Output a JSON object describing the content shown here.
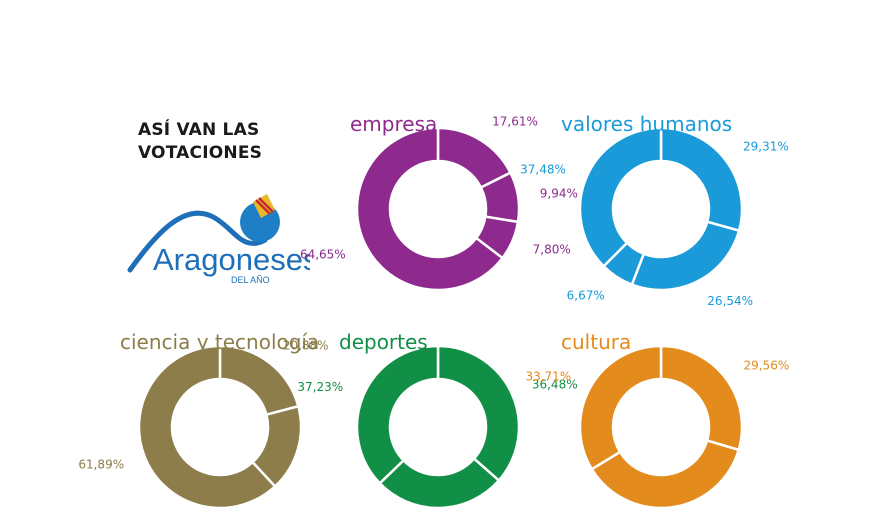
{
  "headline": {
    "line1": "ASÍ VAN LAS",
    "line2": "VOTACIONES"
  },
  "logo": {
    "name": "Aragoneses",
    "subtitle": "DEL AÑO"
  },
  "chart_data": [
    {
      "type": "pie",
      "title": "empresa",
      "color": "#8e2a8e",
      "values": [
        17.61,
        9.94,
        7.8,
        64.65
      ],
      "labels": [
        "17,61%",
        "9,94%",
        "7,80%",
        "64,65%"
      ]
    },
    {
      "type": "pie",
      "title": "valores humanos",
      "color": "#1a9ad9",
      "values": [
        29.31,
        26.54,
        6.67,
        37.48
      ],
      "labels": [
        "29,31%",
        "26,54%",
        "6,67%",
        "37,48%"
      ]
    },
    {
      "type": "pie",
      "title": "ciencia y tecnología",
      "color": "#8c7d4b",
      "values": [
        20.88,
        17.23,
        61.89
      ],
      "labels": [
        "20,88%",
        "",
        "61,89%"
      ]
    },
    {
      "type": "pie",
      "title": "deportes",
      "color": "#128f46",
      "values": [
        36.48,
        26.29,
        37.23
      ],
      "labels": [
        "36,48%",
        "",
        "37,23%"
      ]
    },
    {
      "type": "pie",
      "title": "cultura",
      "color": "#e38b1c",
      "values": [
        29.56,
        36.73,
        33.71
      ],
      "labels": [
        "29,56%",
        "",
        "33,71%"
      ]
    }
  ]
}
